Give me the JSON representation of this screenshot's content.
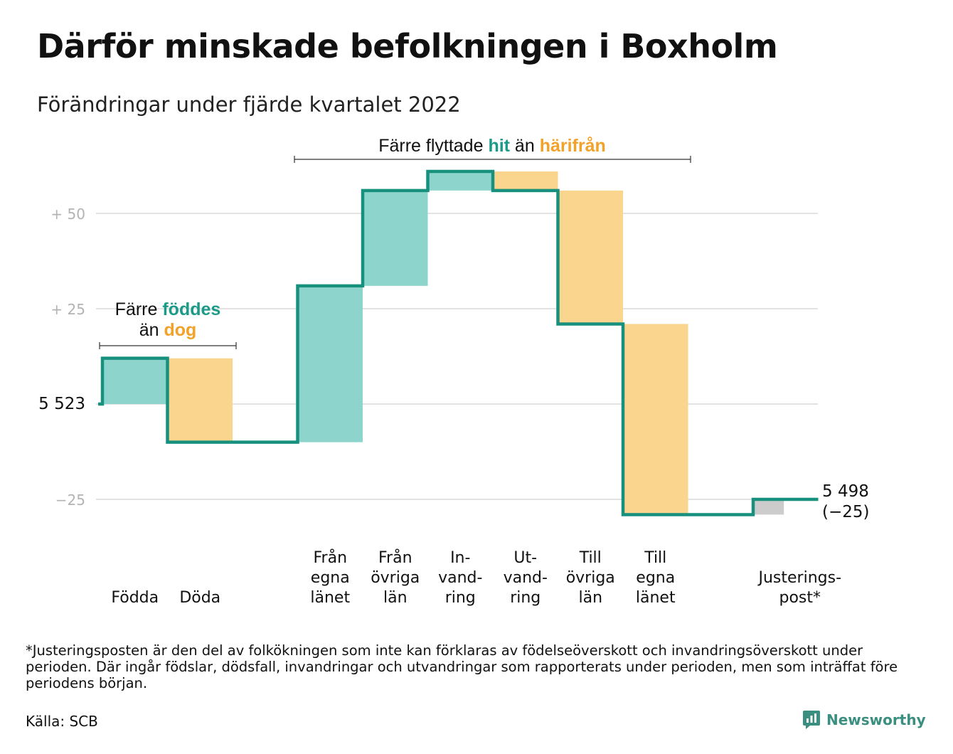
{
  "title": "Därför minskade befolkningen i Boxholm",
  "subtitle": "Förändringar under fjärde kvartalet 2022",
  "colors": {
    "positive_fill": "#8dd5cc",
    "negative_fill": "#fad58e",
    "adjustment_fill": "#cccccc",
    "line": "#17907e",
    "highlight_green": "#1a9a87",
    "highlight_orange": "#f2a129",
    "grid": "#e3e3e3",
    "tick_text": "#b3b3b3"
  },
  "annotations": {
    "births": {
      "before": "Färre ",
      "hl1": "föddes",
      "line2_before": "än ",
      "hl2": "dog"
    },
    "migration": {
      "before": "Färre flyttade ",
      "hl1": "hit",
      "middle": " än ",
      "hl2": "härifrån"
    }
  },
  "footnote": "*Justeringsposten är den del av folkökningen som inte kan förklaras av födelseöverskott och invandringsöverskott under perioden. Där ingår födslar, dödsfall, invandringar och utvandringar som rapporterats under perioden, men som inträffat före periodens början.",
  "source": "Källa: SCB",
  "brand": {
    "name": "Newsworthy",
    "icon": "newsworthy-logo-icon"
  },
  "chart_data": {
    "type": "waterfall",
    "start_value": 5523,
    "start_label": "5 523",
    "end_value": 5498,
    "end_label": "5 498",
    "end_change_label": "(−25)",
    "ylim": [
      -30,
      62
    ],
    "y_ticks": [
      {
        "value": 50,
        "label": "+ 50"
      },
      {
        "value": 25,
        "label": "+ 25"
      },
      {
        "value": 0,
        "label": ""
      },
      {
        "value": -25,
        "label": "−25"
      }
    ],
    "steps": [
      {
        "label_lines": [
          "Födda"
        ],
        "change": 12
      },
      {
        "label_lines": [
          "Döda"
        ],
        "change": -22
      },
      {
        "label_lines": [],
        "change": 0
      },
      {
        "label_lines": [
          "Från",
          "egna",
          "länet"
        ],
        "change": 41
      },
      {
        "label_lines": [
          "Från",
          "övriga",
          "län"
        ],
        "change": 25
      },
      {
        "label_lines": [
          "In-",
          "vand-",
          "ring"
        ],
        "change": 5
      },
      {
        "label_lines": [
          "Ut-",
          "vand-",
          "ring"
        ],
        "change": -5
      },
      {
        "label_lines": [
          "Till",
          "övriga",
          "län"
        ],
        "change": -35
      },
      {
        "label_lines": [
          "Till",
          "egna",
          "länet"
        ],
        "change": -50
      },
      {
        "label_lines": [],
        "change": 0
      },
      {
        "label_lines": [
          "Justerings-",
          "post*"
        ],
        "change": 4,
        "adjustment": true
      }
    ],
    "grid": true
  }
}
